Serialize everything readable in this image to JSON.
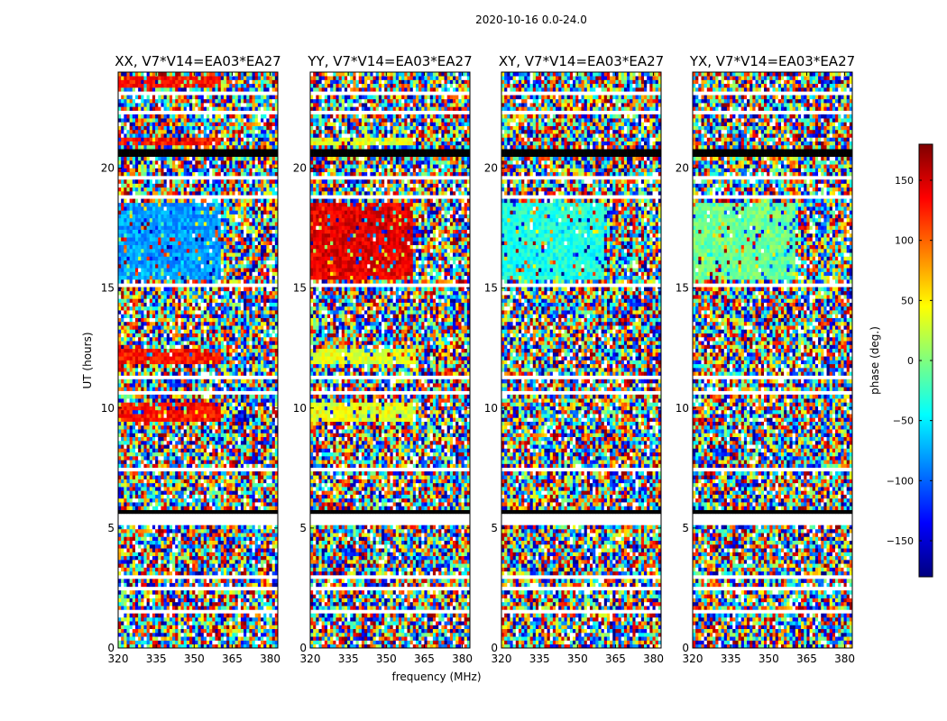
{
  "chart_data": {
    "type": "heatmap",
    "title": "2020-10-16 0.0-24.0",
    "xlabel": "frequency (MHz)",
    "ylabel": "UT (hours)",
    "xlim": [
      320,
      383
    ],
    "ylim": [
      0,
      24
    ],
    "xticks": [
      "320",
      "335",
      "350",
      "365",
      "380"
    ],
    "yticks": [
      "0",
      "5",
      "10",
      "15",
      "20"
    ],
    "colormap": "jet",
    "colorbar": {
      "label": "phase (deg.)",
      "range": [
        -180,
        180
      ],
      "ticks": [
        "−150",
        "−100",
        "−50",
        "0",
        "50",
        "100",
        "150"
      ],
      "tick_values": [
        -150,
        -100,
        -50,
        0,
        50,
        100,
        150
      ]
    },
    "panels": [
      {
        "title": "XX, V7*V14=EA03*EA27"
      },
      {
        "title": "YY, V7*V14=EA03*EA27"
      },
      {
        "title": "XY, V7*V14=EA03*EA27"
      },
      {
        "title": "YX, V7*V14=EA03*EA27"
      }
    ]
  }
}
